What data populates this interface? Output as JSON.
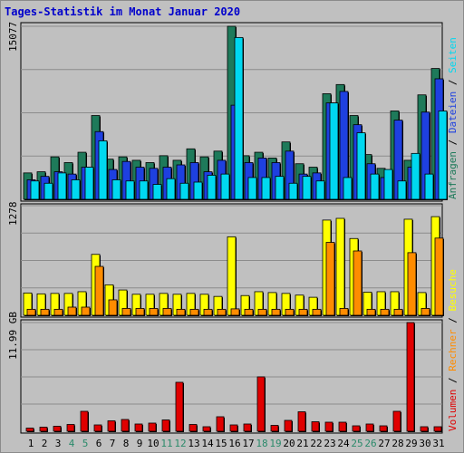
{
  "title": "Tages-Statistik im Monat Januar 2020",
  "colors": {
    "anfragen": "#1e7a5a",
    "dateien": "#1e40e0",
    "seiten": "#00d8f0",
    "besuche": "#ffff00",
    "rechner": "#ff8c00",
    "volumen": "#e00000",
    "weekend": "#2a8a6a",
    "title": "#0000cc"
  },
  "chart_data": [
    {
      "type": "bar",
      "panel": "top",
      "ymax_label": "15077",
      "ylim": [
        0,
        15077
      ],
      "categories": [
        "1",
        "2",
        "3",
        "4",
        "5",
        "6",
        "7",
        "8",
        "9",
        "10",
        "11",
        "12",
        "13",
        "14",
        "15",
        "16",
        "17",
        "18",
        "19",
        "20",
        "21",
        "22",
        "23",
        "24",
        "25",
        "26",
        "27",
        "28",
        "29",
        "30",
        "31"
      ],
      "weekend_days": [
        "4",
        "5",
        "11",
        "12",
        "18",
        "19",
        "25",
        "26"
      ],
      "series": [
        {
          "name": "Anfragen",
          "values": [
            2300,
            2400,
            3700,
            3200,
            4100,
            7300,
            3500,
            3700,
            3400,
            3200,
            3800,
            3400,
            4400,
            3700,
            4200,
            15077,
            3800,
            4100,
            3600,
            5000,
            3100,
            2800,
            9200,
            10000,
            7300,
            3900,
            2700,
            7700,
            3400,
            9100,
            11400
          ]
        },
        {
          "name": "Dateien",
          "values": [
            1700,
            2000,
            2400,
            2200,
            2800,
            5900,
            2600,
            3300,
            2800,
            2700,
            2800,
            3000,
            3200,
            2400,
            3400,
            8200,
            3200,
            3600,
            3200,
            4200,
            2200,
            2300,
            8400,
            9400,
            6500,
            3100,
            1900,
            6900,
            2800,
            7600,
            10500
          ]
        },
        {
          "name": "Seiten",
          "values": [
            1600,
            1400,
            2300,
            1700,
            2800,
            5100,
            1700,
            1600,
            1600,
            1300,
            1800,
            1400,
            1500,
            2100,
            2200,
            14100,
            1900,
            1900,
            2000,
            1400,
            2000,
            1600,
            8400,
            1900,
            5800,
            2200,
            2600,
            1600,
            4000,
            2200,
            7700
          ]
        }
      ]
    },
    {
      "type": "bar",
      "panel": "middle",
      "ymax_label": "1278",
      "ylim": [
        0,
        1278
      ],
      "categories": [
        "1",
        "2",
        "3",
        "4",
        "5",
        "6",
        "7",
        "8",
        "9",
        "10",
        "11",
        "12",
        "13",
        "14",
        "15",
        "16",
        "17",
        "18",
        "19",
        "20",
        "21",
        "22",
        "23",
        "24",
        "25",
        "26",
        "27",
        "28",
        "29",
        "30",
        "31"
      ],
      "series": [
        {
          "name": "Besuche",
          "values": [
            260,
            250,
            255,
            255,
            275,
            710,
            355,
            295,
            245,
            245,
            255,
            245,
            255,
            245,
            220,
            915,
            230,
            275,
            265,
            255,
            235,
            210,
            1110,
            1130,
            895,
            270,
            275,
            275,
            1120,
            265,
            1150
          ]
        },
        {
          "name": "Rechner",
          "values": [
            70,
            70,
            70,
            95,
            95,
            570,
            180,
            80,
            80,
            80,
            80,
            70,
            70,
            70,
            70,
            75,
            70,
            70,
            70,
            70,
            70,
            70,
            850,
            80,
            750,
            70,
            70,
            70,
            730,
            80,
            900
          ]
        }
      ]
    },
    {
      "type": "bar",
      "panel": "bottom",
      "ymax_label": "11.99 GB",
      "ylim": [
        0,
        11.99
      ],
      "unit": "GB",
      "categories": [
        "1",
        "2",
        "3",
        "4",
        "5",
        "6",
        "7",
        "8",
        "9",
        "10",
        "11",
        "12",
        "13",
        "14",
        "15",
        "16",
        "17",
        "18",
        "19",
        "20",
        "21",
        "22",
        "23",
        "24",
        "25",
        "26",
        "27",
        "28",
        "29",
        "30",
        "31"
      ],
      "series": [
        {
          "name": "Volumen",
          "values": [
            0.35,
            0.45,
            0.55,
            0.75,
            2.2,
            0.7,
            1.15,
            1.3,
            0.8,
            0.9,
            1.25,
            5.4,
            0.75,
            0.5,
            1.6,
            0.7,
            0.8,
            6.0,
            0.65,
            1.2,
            2.15,
            1.05,
            1.0,
            1.0,
            0.6,
            0.8,
            0.6,
            2.2,
            11.99,
            0.5,
            0.5
          ]
        }
      ]
    }
  ],
  "side_labels": {
    "top": [
      "Anfragen",
      "Dateien",
      "Seiten"
    ],
    "bottom": [
      "Besuche",
      "Rechner",
      "Volumen"
    ],
    "separator": "/"
  }
}
